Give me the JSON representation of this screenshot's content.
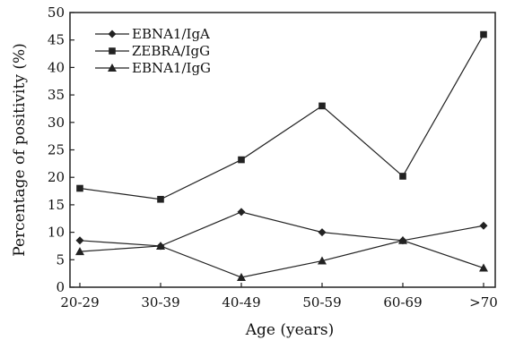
{
  "chart_data": {
    "type": "line",
    "title": "",
    "xlabel": "Age (years)",
    "ylabel": "Percentage of positivity (%)",
    "categories": [
      "20-29",
      "30-39",
      "40-49",
      "50-59",
      "60-69",
      ">70"
    ],
    "ylim": [
      0,
      50
    ],
    "yticks": [
      0,
      5,
      10,
      15,
      20,
      25,
      30,
      35,
      40,
      45,
      50
    ],
    "grid": false,
    "legend_position": "top-left",
    "series": [
      {
        "name": "EBNA1/IgA",
        "marker": "diamond",
        "values": [
          8.5,
          7.5,
          13.7,
          10.0,
          8.5,
          11.2
        ]
      },
      {
        "name": "ZEBRA/IgG",
        "marker": "square",
        "values": [
          18.0,
          16.0,
          23.2,
          33.0,
          20.2,
          46.0
        ]
      },
      {
        "name": "EBNA1/IgG",
        "marker": "triangle",
        "values": [
          6.5,
          7.5,
          1.8,
          4.8,
          8.5,
          3.5
        ]
      }
    ],
    "color": "#222222"
  }
}
